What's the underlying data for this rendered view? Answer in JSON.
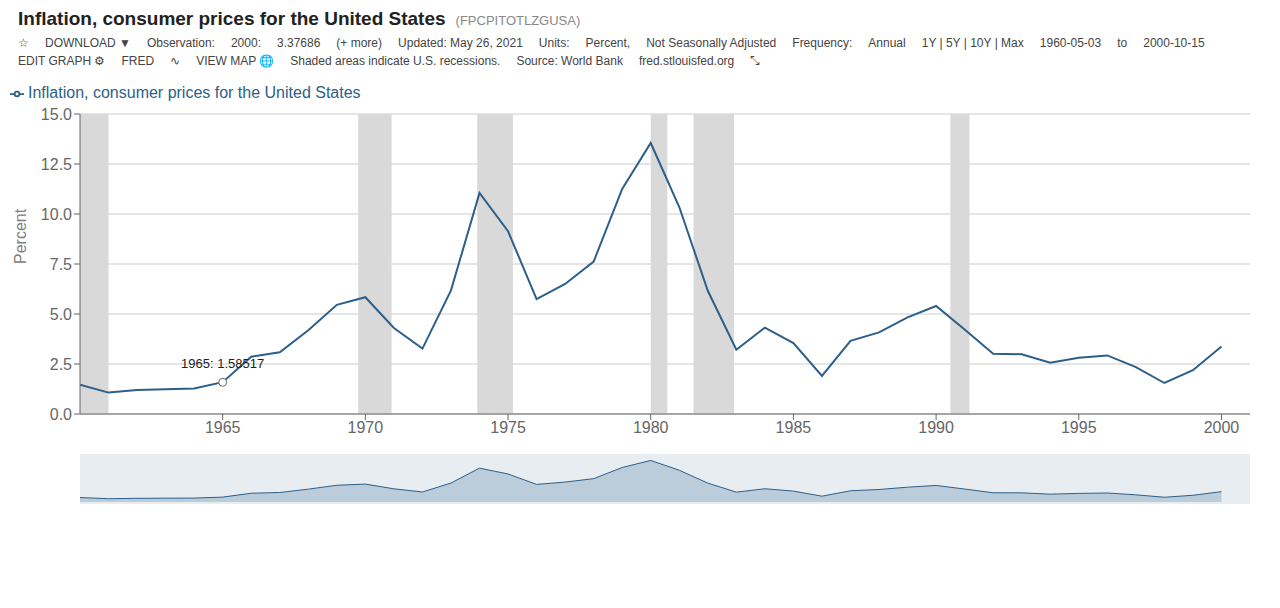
{
  "chart_data": {
    "type": "line",
    "title": "Inflation, consumer prices for the United States",
    "subtitle": "(FPCPITOTLZGUSA)",
    "x": [
      1960,
      1961,
      1962,
      1963,
      1964,
      1965,
      1966,
      1967,
      1968,
      1969,
      1970,
      1971,
      1972,
      1973,
      1974,
      1975,
      1976,
      1977,
      1978,
      1979,
      1980,
      1981,
      1982,
      1983,
      1984,
      1985,
      1986,
      1987,
      1988,
      1989,
      1990,
      1991,
      1992,
      1993,
      1994,
      1995,
      1996,
      1997,
      1998,
      1999,
      2000
    ],
    "series": [
      {
        "name": "Inflation, consumer prices for the United States",
        "color": "#2c5f8a",
        "values": [
          1.46,
          1.07,
          1.2,
          1.24,
          1.28,
          1.59,
          2.86,
          3.09,
          4.19,
          5.46,
          5.84,
          4.3,
          3.27,
          6.18,
          11.05,
          9.14,
          5.74,
          6.5,
          7.62,
          11.25,
          13.55,
          10.35,
          6.16,
          3.21,
          4.32,
          3.55,
          1.9,
          3.66,
          4.08,
          4.83,
          5.4,
          4.23,
          3.01,
          2.99,
          2.56,
          2.81,
          2.93,
          2.34,
          1.55,
          2.19,
          3.38
        ]
      }
    ],
    "xlim": [
      1960,
      2001
    ],
    "xticks": [
      1965,
      1970,
      1975,
      1980,
      1985,
      1990,
      1995,
      2000
    ],
    "ylim": [
      0.0,
      15.0
    ],
    "yticks": [
      {
        "value": 0.0,
        "label": "0.0"
      },
      2.5,
      {
        "value": 5.0,
        "label": "5.0"
      },
      7.5,
      {
        "value": 10.0,
        "label": "10.0"
      },
      12.5,
      {
        "value": 15.0,
        "label": "15.0"
      }
    ],
    "ylabel": "Percent",
    "grid": true,
    "legend": "upper left",
    "recession_bands": [
      [
        1960.0,
        1961.0
      ],
      [
        1969.75,
        1970.92
      ],
      [
        1973.92,
        1975.17
      ],
      [
        1980.0,
        1980.58
      ],
      [
        1981.5,
        1982.92
      ],
      [
        1990.5,
        1991.17
      ]
    ],
    "recession_color": "#d9d9d9",
    "annotations": [
      {
        "text": "1965: 1.58517",
        "x": 1965,
        "y": 1.58517
      },
      "☆",
      "DOWNLOAD  ▼",
      "Observation:",
      "2000:",
      "3.37686",
      "(+ more)",
      "Updated: May 26, 2021",
      "Units:",
      "Percent,",
      "Not Seasonally Adjusted",
      "Frequency:",
      "Annual",
      "1Y | 5Y | 10Y | Max",
      "1960-05-03",
      "to",
      "2000-10-15",
      "EDIT GRAPH  ⚙",
      "FRED",
      "∿",
      "VIEW MAP  🌐",
      "Shaded areas indicate U.S. recessions.",
      "Source: World Bank",
      "fred.stlouisfed.org",
      "⤡"
    ]
  }
}
